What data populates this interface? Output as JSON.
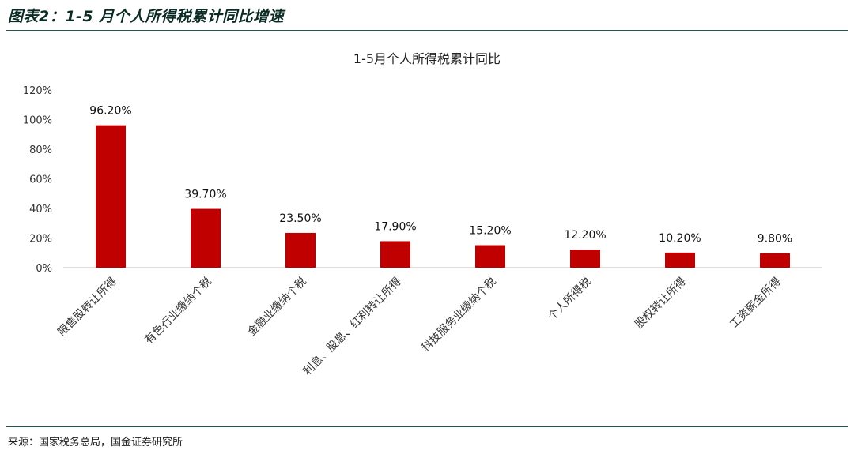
{
  "header": {
    "title": "图表2：1-5 月个人所得税累计同比增速"
  },
  "source": {
    "text": "来源：国家税务总局，国金证券研究所"
  },
  "colors": {
    "bar": "#c00000",
    "rule": "#1f5a52",
    "axis": "#bfbfbf"
  },
  "chart_data": {
    "type": "bar",
    "title": "1-5月个人所得税累计同比",
    "categories": [
      "限售股转让所得",
      "有色行业缴纳个税",
      "金融业缴纳个税",
      "利息、股息、红利转让所得",
      "科技服务业缴纳个税",
      "个人所得税",
      "股权转让所得",
      "工资薪金所得"
    ],
    "values": [
      96.2,
      39.7,
      23.5,
      17.9,
      15.2,
      12.2,
      10.2,
      9.8
    ],
    "data_labels": [
      "96.20%",
      "39.70%",
      "23.50%",
      "17.90%",
      "15.20%",
      "12.20%",
      "10.20%",
      "9.80%"
    ],
    "y_ticks": [
      "0%",
      "20%",
      "40%",
      "60%",
      "80%",
      "100%",
      "120%"
    ],
    "ylim": [
      0,
      120
    ],
    "grid": false,
    "legend": "none"
  }
}
